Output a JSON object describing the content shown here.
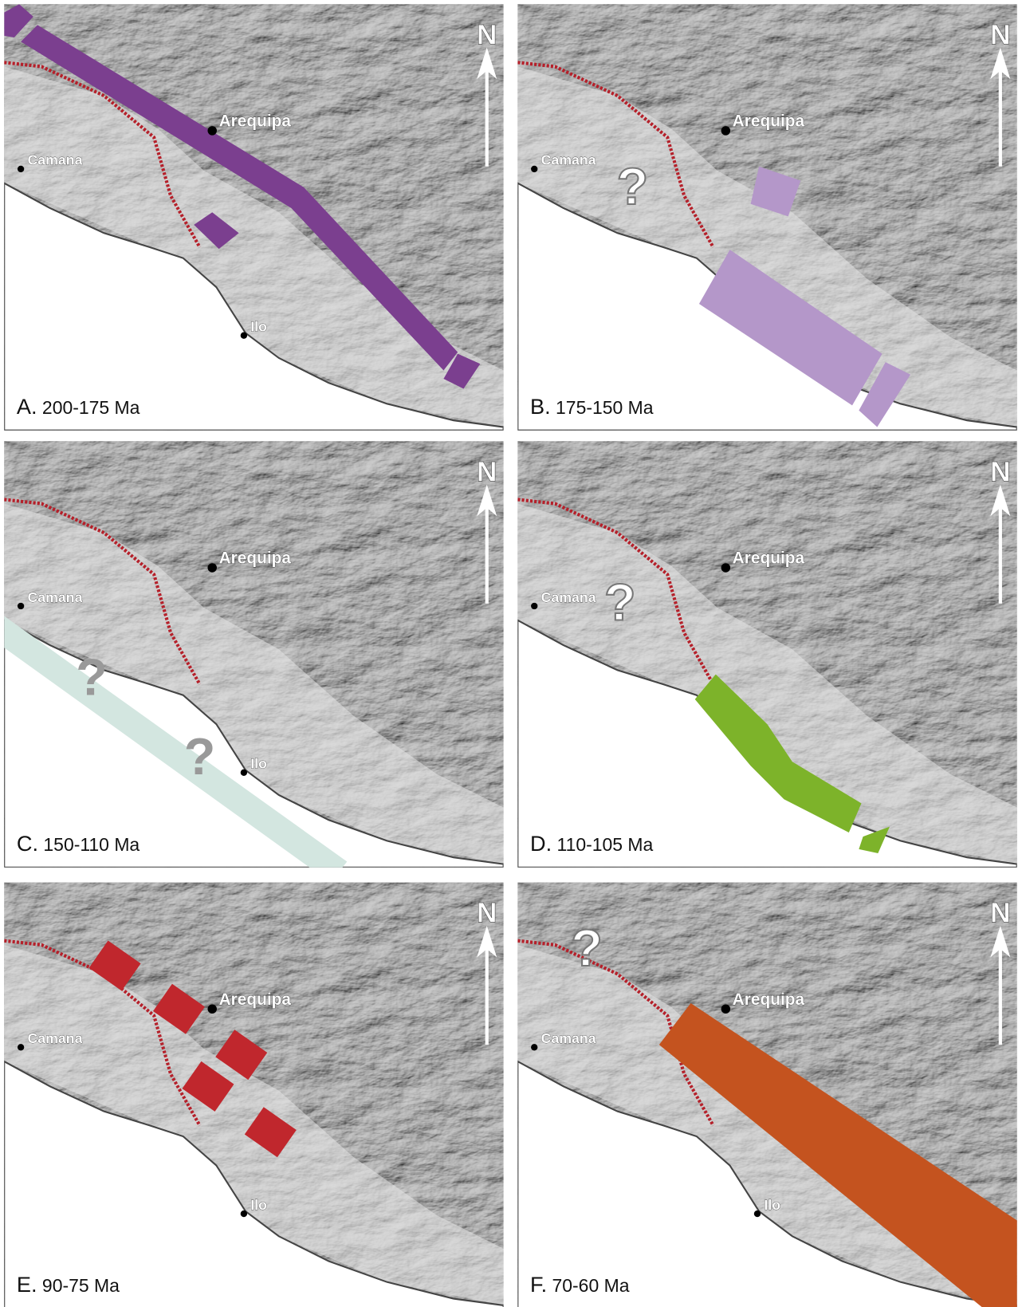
{
  "panels": [
    {
      "letter": "A.",
      "age": "200-175 Ma",
      "color": "#7b3f8f",
      "cities": [
        "Arequipa",
        "Camana",
        "Ilo"
      ],
      "north": "N",
      "question_marks": []
    },
    {
      "letter": "B.",
      "age": "175-150 Ma",
      "color": "#b497c9",
      "cities": [
        "Arequipa",
        "Camana"
      ],
      "north": "N",
      "question_marks": [
        "?"
      ]
    },
    {
      "letter": "C.",
      "age": "150-110 Ma",
      "color": "#d3e6e0",
      "cities": [
        "Arequipa",
        "Camana",
        "Ilo"
      ],
      "north": "N",
      "question_marks": [
        "?",
        "?"
      ]
    },
    {
      "letter": "D.",
      "age": "110-105 Ma",
      "color": "#7db32a",
      "cities": [
        "Arequipa",
        "Camana"
      ],
      "north": "N",
      "question_marks": [
        "?"
      ]
    },
    {
      "letter": "E.",
      "age": "90-75 Ma",
      "color": "#c0272d",
      "cities": [
        "Arequipa",
        "Camana",
        "Ilo"
      ],
      "north": "N",
      "question_marks": []
    },
    {
      "letter": "F.",
      "age": "70-60 Ma",
      "color": "#c4531f",
      "cities": [
        "Arequipa",
        "Camana",
        "Ilo"
      ],
      "north": "N",
      "question_marks": [
        "?"
      ]
    }
  ]
}
